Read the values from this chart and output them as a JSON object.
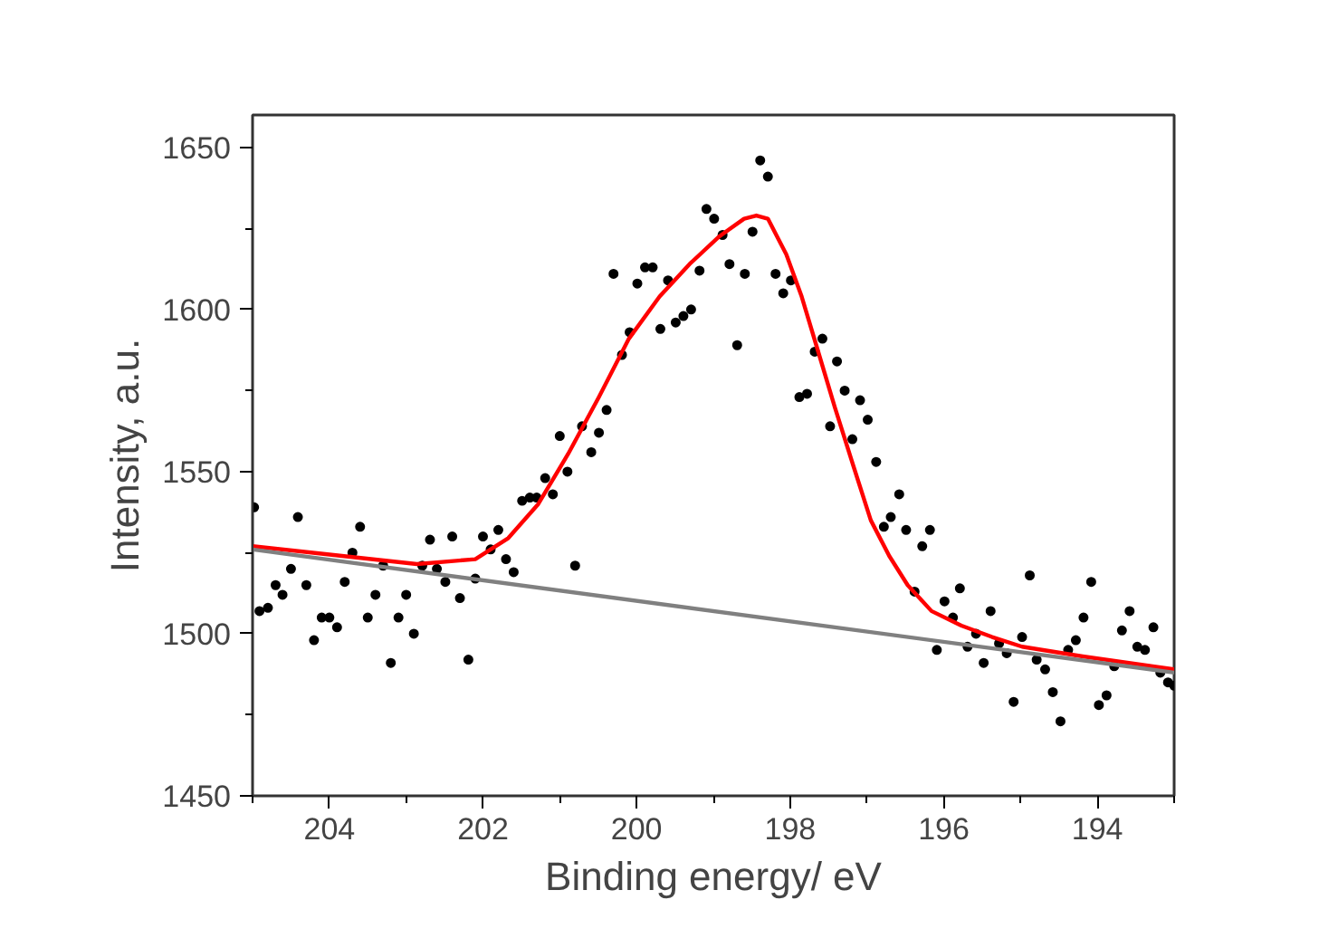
{
  "chart_data": {
    "type": "scatter",
    "xlabel": "Binding energy/ eV",
    "ylabel": "Intensity, a.u.",
    "xlim": [
      205,
      193
    ],
    "ylim": [
      1450,
      1660
    ],
    "xticks": [
      {
        "value": 205,
        "label": null
      },
      204,
      {
        "value": 203,
        "label": null
      },
      202,
      {
        "value": 201,
        "label": null
      },
      200,
      {
        "value": 199,
        "label": null
      },
      198,
      {
        "value": 197,
        "label": null
      },
      196,
      {
        "value": 195,
        "label": null
      },
      194,
      {
        "value": 193,
        "label": null
      }
    ],
    "yticks": [
      1450,
      {
        "value": 1475,
        "label": null
      },
      1500,
      {
        "value": 1525,
        "label": null
      },
      1550,
      {
        "value": 1575,
        "label": null
      },
      1600,
      {
        "value": 1625,
        "label": null
      },
      1650
    ],
    "grid": false,
    "series": [
      {
        "marker": "circle",
        "color": "#000000",
        "x": [
          204.98,
          204.91,
          204.8,
          204.7,
          204.61,
          204.5,
          204.41,
          204.3,
          204.2,
          204.1,
          204.0,
          203.9,
          203.8,
          203.7,
          203.6,
          203.5,
          203.4,
          203.3,
          203.2,
          203.1,
          203.0,
          202.9,
          202.79,
          202.69,
          202.6,
          202.49,
          202.4,
          202.3,
          202.19,
          202.1,
          202.0,
          201.9,
          201.8,
          201.7,
          201.6,
          201.49,
          201.39,
          201.3,
          201.19,
          201.09,
          201.0,
          200.9,
          200.8,
          200.71,
          200.59,
          200.49,
          200.39,
          200.3,
          200.19,
          200.09,
          199.99,
          199.89,
          199.79,
          199.69,
          199.59,
          199.49,
          199.39,
          199.29,
          199.18,
          199.09,
          198.99,
          198.88,
          198.79,
          198.69,
          198.59,
          198.49,
          198.39,
          198.29,
          198.19,
          198.09,
          197.99,
          197.88,
          197.78,
          197.68,
          197.58,
          197.48,
          197.39,
          197.29,
          197.19,
          197.09,
          196.99,
          196.88,
          196.78,
          196.69,
          196.58,
          196.49,
          196.38,
          196.28,
          196.18,
          196.09,
          195.99,
          195.88,
          195.79,
          195.69,
          195.58,
          195.48,
          195.39,
          195.28,
          195.18,
          195.09,
          194.98,
          194.88,
          194.79,
          194.68,
          194.58,
          194.48,
          194.38,
          194.28,
          194.18,
          194.08,
          193.98,
          193.88,
          193.78,
          193.68,
          193.58,
          193.48,
          193.38,
          193.27,
          193.18,
          193.08,
          193.0
        ],
        "values": [
          1539,
          1507,
          1508,
          1515,
          1512,
          1520,
          1536,
          1515,
          1498,
          1505,
          1505,
          1502,
          1516,
          1525,
          1533,
          1505,
          1512,
          1521,
          1491,
          1505,
          1512,
          1500,
          1521,
          1529,
          1520,
          1516,
          1530,
          1511,
          1492,
          1517,
          1530,
          1526,
          1532,
          1523,
          1519,
          1541,
          1542,
          1542,
          1548,
          1543,
          1561,
          1550,
          1521,
          1564,
          1556,
          1562,
          1569,
          1611,
          1586,
          1593,
          1608,
          1613,
          1613,
          1594,
          1609,
          1596,
          1598,
          1600,
          1612,
          1631,
          1628,
          1623,
          1614,
          1589,
          1611,
          1624,
          1646,
          1641,
          1611,
          1605,
          1609,
          1573,
          1574,
          1587,
          1591,
          1564,
          1584,
          1575,
          1560,
          1572,
          1566,
          1553,
          1533,
          1536,
          1543,
          1532,
          1513,
          1527,
          1532,
          1495,
          1510,
          1505,
          1514,
          1496,
          1500,
          1491,
          1507,
          1497,
          1494,
          1479,
          1499,
          1518,
          1492,
          1489,
          1482,
          1473,
          1495,
          1498,
          1505,
          1516,
          1478,
          1481,
          1490,
          1501,
          1507,
          1496,
          1495,
          1502,
          1488,
          1485,
          1484
        ]
      },
      {
        "type": "line",
        "marker": "none",
        "color": "#ff0000",
        "x": [
          205,
          202.86,
          202.1,
          201.67,
          201.28,
          200.89,
          200.49,
          200.1,
          199.7,
          199.31,
          198.92,
          198.6,
          198.44,
          198.29,
          198.05,
          197.85,
          197.66,
          197.42,
          197.18,
          196.95,
          196.71,
          196.47,
          196.16,
          195.77,
          195.37,
          194.98,
          194.19,
          193
        ],
        "values": [
          1527,
          1521.5,
          1523,
          1529.5,
          1540,
          1555.5,
          1573,
          1591,
          1604,
          1614,
          1622.6,
          1628,
          1629,
          1628,
          1617,
          1604,
          1589,
          1570,
          1552,
          1535,
          1524,
          1515,
          1507,
          1502.5,
          1499,
          1496,
          1493,
          1489
        ]
      },
      {
        "type": "line",
        "marker": "none",
        "color": "#808080",
        "x": [
          205,
          193
        ],
        "values": [
          1526,
          1488
        ]
      }
    ]
  }
}
